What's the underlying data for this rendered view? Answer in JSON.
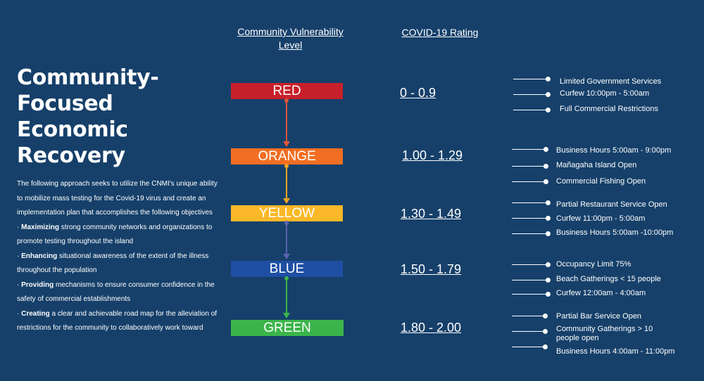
{
  "title": [
    "Community-",
    "Focused",
    "Economic",
    "Recovery"
  ],
  "description": [
    {
      "bold": "",
      "text": "The following approach seeks to utilize the CNMI's unique ability"
    },
    {
      "bold": "",
      "text": "to mobilize mass  testing for the Covid-19 virus and create an"
    },
    {
      "bold": "",
      "text": "implementation plan that accomplishes the following objectives"
    },
    {
      "bold": "Maximizing",
      "text": " strong community networks and organizations to"
    },
    {
      "bold": "",
      "text": "promote testing throughout the island"
    },
    {
      "bold": "Enhancing",
      "text": " situational awareness of the extent of the illness"
    },
    {
      "bold": "",
      "text": "throughout the population"
    },
    {
      "bold": "Providing",
      "text": " mechanisms to ensure consumer confidence in the"
    },
    {
      "bold": "",
      "text": "safety of commercial establishments"
    },
    {
      "bold": "Creating",
      "text": " a clear and achievable road map for the alleviation of"
    },
    {
      "bold": "",
      "text": "restrictions for the community to collaboratively work toward"
    }
  ],
  "headers": {
    "level_line1": "Community Vulnerability",
    "level_line2": "Level",
    "rating": "COVID-19 Rating"
  },
  "levels": [
    {
      "name": "RED",
      "color": "#c8202b",
      "rating": "0 - 0.9",
      "items": [
        "Limited Government Services",
        "Curfew 10:00pm - 5:00am",
        "Full Commercial Restrictions"
      ]
    },
    {
      "name": "ORANGE",
      "color": "#f26e22",
      "rating": "1.00 - 1.29",
      "items": [
        "Business Hours 5:00am - 9:00pm",
        "Mañagaha Island Open",
        "Commercial Fishing Open"
      ]
    },
    {
      "name": "YELLOW",
      "color": "#fbb828",
      "rating": "1.30 - 1.49",
      "items": [
        "Partial Restaurant Service Open",
        "Curfew 11:00pm - 5:00am",
        "Business Hours 5:00am -10:00pm"
      ]
    },
    {
      "name": "BLUE",
      "color": "#1e4fa3",
      "rating": "1.50 - 1.79",
      "items": [
        "Occupancy Limit 75%",
        "Beach Gatherings < 15 people",
        "Curfew 12:00am - 4:00am"
      ]
    },
    {
      "name": "GREEN",
      "color": "#3bb54a",
      "rating": "1.80 - 2.00",
      "items": [
        "Partial Bar Service Open",
        "Community Gatherings > 10 people open",
        "Business Hours 4:00am - 11:00pm"
      ]
    }
  ],
  "connector_colors": [
    "#e0553a",
    "#f4a51f",
    "#5a63b0",
    "#3bb54a"
  ]
}
